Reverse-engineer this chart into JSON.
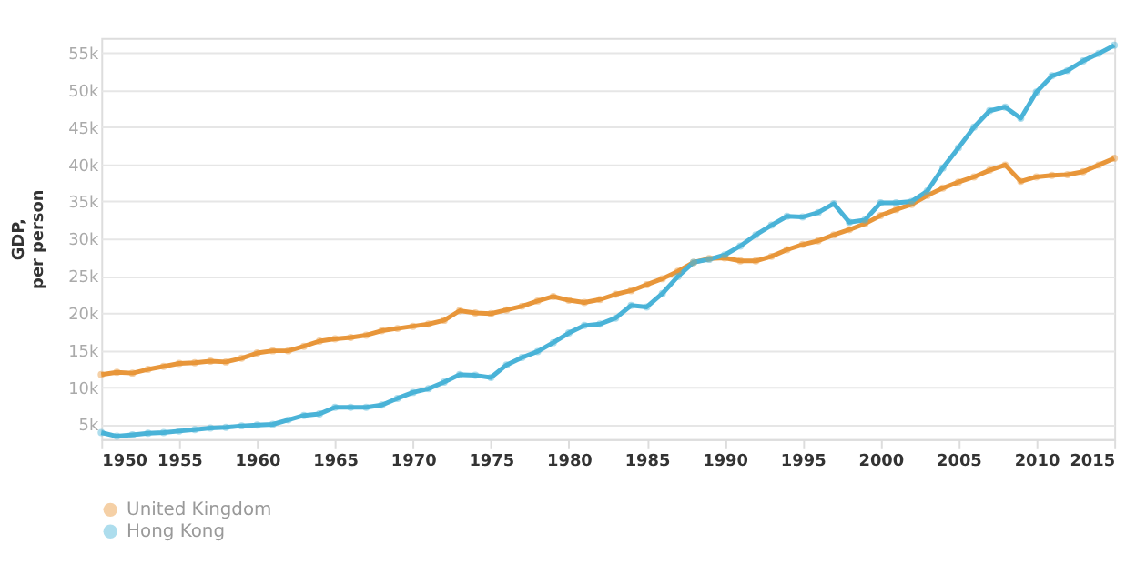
{
  "chart_data": {
    "type": "line",
    "ylabel": "GDP,\nper person",
    "x": [
      1950,
      1951,
      1952,
      1953,
      1954,
      1955,
      1956,
      1957,
      1958,
      1959,
      1960,
      1961,
      1962,
      1963,
      1964,
      1965,
      1966,
      1967,
      1968,
      1969,
      1970,
      1971,
      1972,
      1973,
      1974,
      1975,
      1976,
      1977,
      1978,
      1979,
      1980,
      1981,
      1982,
      1983,
      1984,
      1985,
      1986,
      1987,
      1988,
      1989,
      1990,
      1991,
      1992,
      1993,
      1994,
      1995,
      1996,
      1997,
      1998,
      1999,
      2000,
      2001,
      2002,
      2003,
      2004,
      2005,
      2006,
      2007,
      2008,
      2009,
      2010,
      2011,
      2012,
      2013,
      2014,
      2015
    ],
    "series": [
      {
        "name": "United Kingdom",
        "color": "#e8963a",
        "values": [
          11700,
          12000,
          11900,
          12400,
          12800,
          13200,
          13300,
          13500,
          13400,
          13900,
          14600,
          14900,
          14900,
          15500,
          16200,
          16500,
          16700,
          17000,
          17600,
          17900,
          18200,
          18500,
          19000,
          20300,
          20000,
          19900,
          20400,
          20900,
          21600,
          22200,
          21700,
          21400,
          21800,
          22500,
          23000,
          23800,
          24600,
          25600,
          26800,
          27300,
          27400,
          27000,
          27000,
          27600,
          28500,
          29200,
          29700,
          30500,
          31200,
          32000,
          33100,
          33900,
          34600,
          35800,
          36800,
          37600,
          38300,
          39200,
          39900,
          37700,
          38300,
          38500,
          38600,
          39000,
          39900,
          40800
        ]
      },
      {
        "name": "Hong Kong",
        "color": "#4ab3d8",
        "values": [
          3900,
          3400,
          3600,
          3800,
          3900,
          4100,
          4300,
          4500,
          4600,
          4800,
          4900,
          5000,
          5600,
          6200,
          6400,
          7300,
          7300,
          7300,
          7600,
          8500,
          9300,
          9800,
          10700,
          11700,
          11600,
          11300,
          13000,
          14000,
          14800,
          16000,
          17300,
          18300,
          18500,
          19300,
          21000,
          20800,
          22600,
          24900,
          26800,
          27200,
          27800,
          29000,
          30500,
          31800,
          33000,
          32900,
          33500,
          34700,
          32200,
          32500,
          34800,
          34800,
          35000,
          36400,
          39500,
          42200,
          45000,
          47200,
          47700,
          46200,
          49700,
          51900,
          52600,
          53900,
          54900,
          56000
        ]
      }
    ],
    "xlim": [
      1950,
      2015
    ],
    "xticks": [
      1950,
      1955,
      1960,
      1965,
      1970,
      1975,
      1980,
      1985,
      1990,
      1995,
      2000,
      2005,
      2010,
      2015
    ],
    "ylim": [
      3000,
      57000
    ],
    "yticks": [
      {
        "value": 5000,
        "label": "5k"
      },
      {
        "value": 10000,
        "label": "10k"
      },
      {
        "value": 15000,
        "label": "15k"
      },
      {
        "value": 20000,
        "label": "20k"
      },
      {
        "value": 25000,
        "label": "25k"
      },
      {
        "value": 30000,
        "label": "30k"
      },
      {
        "value": 35000,
        "label": "35k"
      },
      {
        "value": 40000,
        "label": "40k"
      },
      {
        "value": 45000,
        "label": "45k"
      },
      {
        "value": 50000,
        "label": "50k"
      },
      {
        "value": 55000,
        "label": "55k"
      }
    ],
    "grid": "y",
    "legend": "bottom left",
    "marker": "circle",
    "line_style": "solid"
  }
}
